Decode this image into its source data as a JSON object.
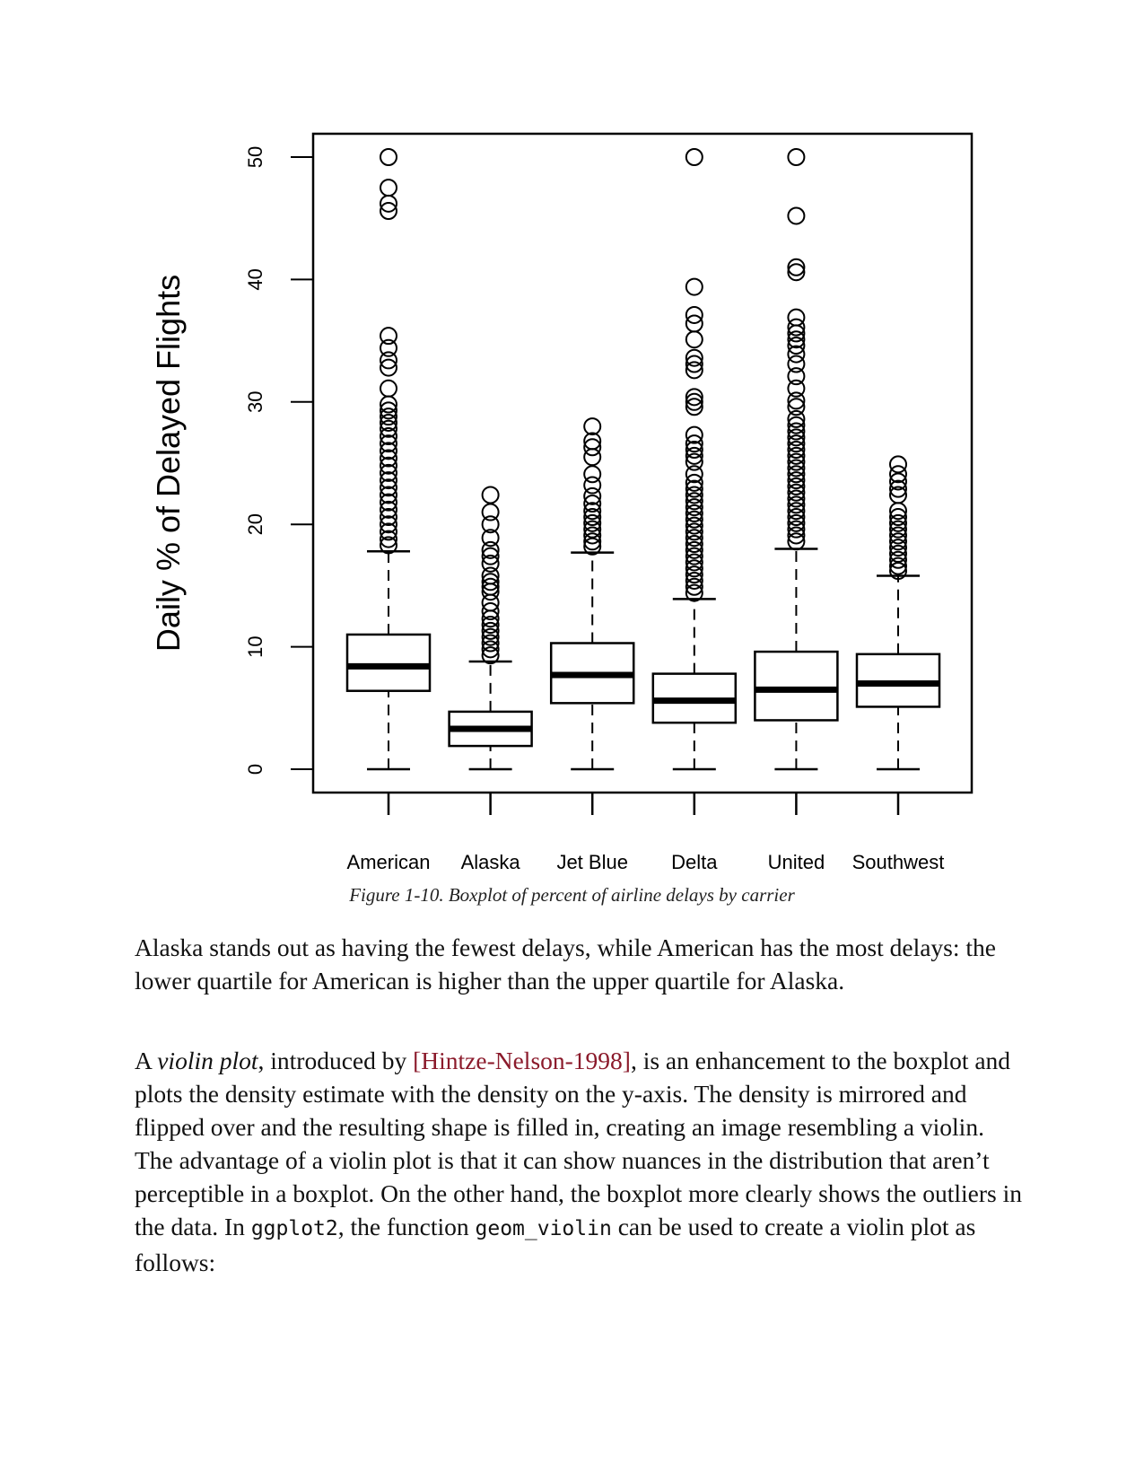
{
  "chart_data": {
    "type": "boxplot",
    "title": "",
    "xlabel": "",
    "ylabel": "Daily % of Delayed Flights",
    "ylim": [
      -2,
      52
    ],
    "yticks": [
      0,
      10,
      20,
      30,
      40,
      50
    ],
    "categories": [
      "American",
      "Alaska",
      "Jet Blue",
      "Delta",
      "United",
      "Southwest"
    ],
    "boxes": [
      {
        "name": "American",
        "whisker_low": 0,
        "q1": 6.4,
        "median": 8.4,
        "q3": 11.0,
        "whisker_high": 17.8,
        "outliers": [
          50,
          47.5,
          46.2,
          45.6,
          35.4,
          34.4,
          33.4,
          32.8,
          31.1,
          29.8,
          29.3,
          28.8,
          28.3,
          27.8,
          27.2,
          26.6,
          26.0,
          25.4,
          24.8,
          24.2,
          23.6,
          23.0,
          22.4,
          21.8,
          21.2,
          20.6,
          20.0,
          19.4,
          18.8,
          18.3
        ]
      },
      {
        "name": "Alaska",
        "whisker_low": 0,
        "q1": 1.9,
        "median": 3.3,
        "q3": 4.7,
        "whisker_high": 8.8,
        "outliers": [
          22.4,
          21.0,
          20.0,
          18.9,
          17.9,
          17.4,
          16.8,
          15.8,
          15.3,
          14.9,
          14.5,
          13.6,
          12.9,
          12.3,
          11.8,
          11.3,
          10.8,
          10.3,
          9.8,
          9.3
        ]
      },
      {
        "name": "Jet Blue",
        "whisker_low": 0,
        "q1": 5.4,
        "median": 7.7,
        "q3": 10.3,
        "whisker_high": 17.7,
        "outliers": [
          28.0,
          26.8,
          26.3,
          25.5,
          24.1,
          23.2,
          22.3,
          21.7,
          21.1,
          20.6,
          20.1,
          19.6,
          19.1,
          18.6,
          18.2
        ]
      },
      {
        "name": "Delta",
        "whisker_low": 0,
        "q1": 3.8,
        "median": 5.6,
        "q3": 7.8,
        "whisker_high": 13.9,
        "outliers": [
          50,
          39.4,
          37.1,
          36.4,
          35.1,
          33.6,
          33.1,
          32.6,
          30.4,
          30.0,
          29.6,
          27.3,
          26.6,
          26.1,
          25.6,
          25.1,
          24.1,
          23.4,
          22.9,
          22.4,
          21.9,
          21.4,
          20.9,
          20.4,
          19.9,
          19.4,
          18.9,
          18.4,
          17.9,
          17.4,
          16.9,
          16.4,
          15.9,
          15.4,
          14.9,
          14.4
        ]
      },
      {
        "name": "United",
        "whisker_low": 0,
        "q1": 4.0,
        "median": 6.5,
        "q3": 9.6,
        "whisker_high": 18.0,
        "outliers": [
          50,
          45.2,
          41.0,
          40.6,
          36.9,
          36.1,
          35.6,
          35.1,
          34.6,
          33.9,
          33.1,
          32.1,
          31.1,
          30.1,
          29.6,
          28.6,
          28.1,
          27.6,
          27.1,
          26.6,
          26.1,
          25.6,
          25.1,
          24.6,
          24.1,
          23.6,
          23.1,
          22.6,
          22.1,
          21.6,
          21.1,
          20.6,
          20.1,
          19.6,
          19.1,
          18.6
        ]
      },
      {
        "name": "Southwest",
        "whisker_low": 0,
        "q1": 5.1,
        "median": 7.0,
        "q3": 9.4,
        "whisker_high": 15.8,
        "outliers": [
          24.9,
          24.1,
          23.5,
          22.9,
          22.4,
          21.1,
          20.6,
          20.1,
          19.6,
          19.1,
          18.6,
          18.1,
          17.6,
          17.1,
          16.6,
          16.2
        ]
      }
    ],
    "grid": false,
    "legend": "none"
  },
  "caption": "Figure 1-10. Boxplot of percent of airline delays by carrier",
  "paragraphs": {
    "p1": "Alaska stands out as having the fewest delays, while American has the most delays: the lower quartile for American is higher than the upper quartile for Alaska.",
    "p2_a": "A ",
    "p2_em": "violin plot",
    "p2_b": ", introduced by ",
    "p2_ref": "[Hintze-Nelson-1998]",
    "p2_c": ", is an enhancement to the boxplot and plots the density estimate with the density on the y-axis. The density is mirrored and flipped over and the resulting shape is filled in, creating an image resembling a violin. The advantage of a violin plot is that it can show nuances in the distribution that aren’t perceptible in a boxplot. On the other hand, the boxplot more clearly shows the outliers in the data. In ",
    "p2_code1": "ggplot2",
    "p2_d": ", the function ",
    "p2_code2": "geom_violin",
    "p2_e": " can be used to create a violin plot as follows:"
  }
}
